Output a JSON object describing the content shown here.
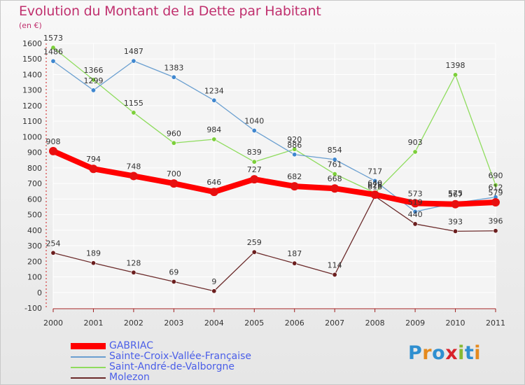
{
  "header": {
    "title": "Evolution du Montant de la Dette par Habitant",
    "unit": "(en €)"
  },
  "logo": {
    "text": "Proxiti",
    "colors": [
      "#2f8fd0",
      "#e58a1e",
      "#2f8fd0",
      "#d8222a",
      "#88b934",
      "#2f8fd0",
      "#e58a1e"
    ]
  },
  "chart_data": {
    "type": "line",
    "title": "Evolution du Montant de la Dette par Habitant",
    "subtitle": "(en €)",
    "xlabel": "",
    "ylabel": "",
    "x": [
      "2000",
      "2001",
      "2002",
      "2003",
      "2004",
      "2005",
      "2006",
      "2007",
      "2008",
      "2009",
      "2010",
      "2011"
    ],
    "ylim": [
      -100,
      1600
    ],
    "yticks": [
      -100,
      0,
      100,
      200,
      300,
      400,
      500,
      600,
      700,
      800,
      900,
      1000,
      1100,
      1200,
      1300,
      1400,
      1500,
      1600
    ],
    "grid": true,
    "legend": "bottom-left",
    "series": [
      {
        "name": "GABRIAC",
        "color": "#ff0000",
        "marker": "#e81010",
        "values": [
          908,
          794,
          748,
          700,
          646,
          727,
          682,
          668,
          628,
          573,
          567,
          579
        ]
      },
      {
        "name": "Sainte-Croix-Vallée-Française",
        "color": "#6a9fd0",
        "marker": "#3f87cf",
        "values": [
          1486,
          1299,
          1487,
          1383,
          1234,
          1040,
          886,
          854,
          717,
          519,
          575,
          612
        ]
      },
      {
        "name": "Saint-André-de-Valborgne",
        "color": "#8fdc5e",
        "marker": "#7ccf3a",
        "values": [
          1573,
          1366,
          1155,
          960,
          984,
          839,
          920,
          761,
          640,
          903,
          1398,
          690
        ]
      },
      {
        "name": "Molezon",
        "color": "#6b2a2a",
        "marker": "#6b1e1e",
        "values": [
          254,
          189,
          128,
          69,
          9,
          259,
          187,
          114,
          618,
          440,
          393,
          396
        ]
      }
    ]
  }
}
